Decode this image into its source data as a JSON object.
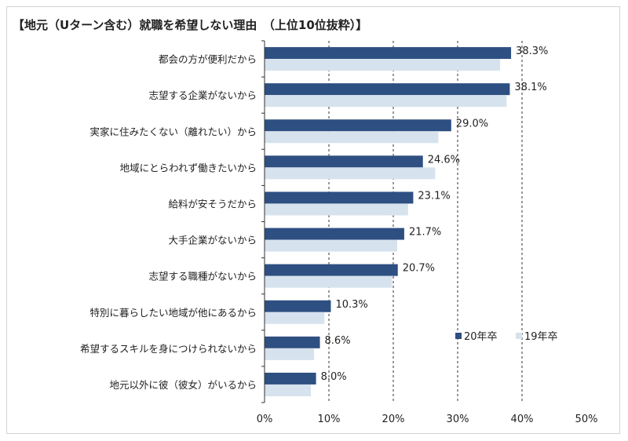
{
  "chart_data": {
    "type": "bar",
    "orientation": "horizontal",
    "title": "【地元（Uターン含む）就職を希望しない理由　（上位10位抜粋）】",
    "categories": [
      "都会の方が便利だから",
      "志望する企業がないから",
      "実家に住みたくない（離れたい）から",
      "地域にとらわれず働きたいから",
      "給料が安そうだから",
      "大手企業がないから",
      "志望する職種がないから",
      "特別に暮らしたい地域が他にあるから",
      "希望するスキルを身につけられないから",
      "地元以外に彼（彼女）がいるから"
    ],
    "series": [
      {
        "name": "20年卒",
        "color": "#2e4f81",
        "values": [
          38.3,
          38.1,
          29.0,
          24.6,
          23.1,
          21.7,
          20.7,
          10.3,
          8.6,
          8.0
        ],
        "labels": [
          "38.3%",
          "38.1%",
          "29.0%",
          "24.6%",
          "23.1%",
          "21.7%",
          "20.7%",
          "10.3%",
          "8.6%",
          "8.0%"
        ]
      },
      {
        "name": "19年卒",
        "color": "#d6e2ee",
        "values": [
          36.6,
          37.6,
          27.0,
          26.5,
          22.3,
          20.6,
          19.8,
          9.3,
          7.7,
          7.2
        ]
      }
    ],
    "x_ticks": [
      "0%",
      "10%",
      "20%",
      "30%",
      "40%",
      "50%"
    ],
    "xlim": [
      0,
      50
    ],
    "grid": "vertical dashed at 10% intervals",
    "legend_position": "lower-right inside plot"
  }
}
